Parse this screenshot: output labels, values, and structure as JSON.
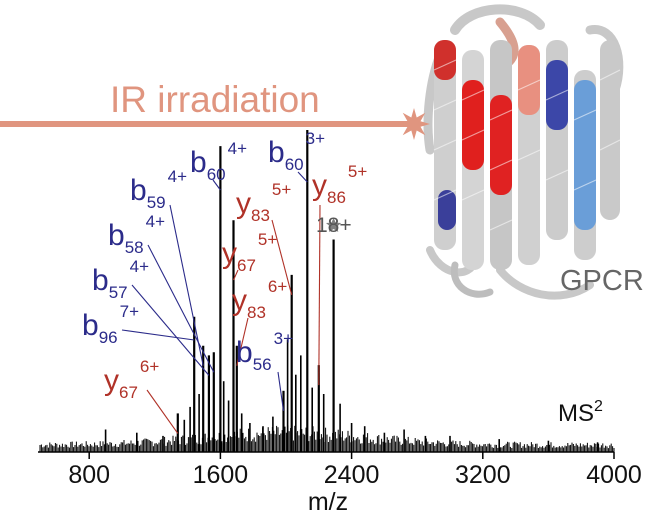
{
  "chart_data": {
    "type": "mass-spectrum",
    "xlabel": "m/z",
    "xlim": [
      500,
      4000
    ],
    "xticks": [
      800,
      1600,
      2400,
      3200,
      4000
    ],
    "spectrum_label_main": "MS",
    "spectrum_label_sup": "2",
    "annotations": {
      "irradiation": "IR irradiation",
      "protein": "GPCR",
      "precursor_charge": "18+"
    },
    "colors": {
      "b_ions": "#2b2b8a",
      "y_ions": "#b03228",
      "precursor": "#808080",
      "laser": "#e0957f",
      "spectrum": "#000000"
    },
    "peaks": [
      {
        "ion": "b",
        "num": "59",
        "charge": "4+",
        "mz": 1495,
        "rel": 0.33
      },
      {
        "ion": "b",
        "num": "57",
        "charge": "4+",
        "mz": 1530,
        "rel": 0.3
      },
      {
        "ion": "b",
        "num": "58",
        "charge": "4+",
        "mz": 1560,
        "rel": 0.31
      },
      {
        "ion": "b",
        "num": "96",
        "charge": "7+",
        "mz": 1440,
        "rel": 0.42
      },
      {
        "ion": "b",
        "num": "60",
        "charge": "4+",
        "mz": 1600,
        "rel": 0.95
      },
      {
        "ion": "y",
        "num": "67",
        "charge": "5+",
        "mz": 1680,
        "rel": 0.72
      },
      {
        "ion": "y",
        "num": "83",
        "charge": "6+",
        "mz": 1700,
        "rel": 0.33
      },
      {
        "ion": "y",
        "num": "67",
        "charge": "6+",
        "mz": 1340,
        "rel": 0.12
      },
      {
        "ion": "b",
        "num": "56",
        "charge": "3+",
        "mz": 1985,
        "rel": 0.19
      },
      {
        "ion": "y",
        "num": "83",
        "charge": "5+",
        "mz": 2035,
        "rel": 0.55
      },
      {
        "ion": "b",
        "num": "60",
        "charge": "3+",
        "mz": 2130,
        "rel": 1.0
      },
      {
        "ion": "y",
        "num": "86",
        "charge": "5+",
        "mz": 2200,
        "rel": 0.27
      },
      {
        "ion": "precursor",
        "num": "",
        "charge": "18+",
        "mz": 2290,
        "rel": 0.66
      }
    ],
    "minor_peaks": [
      {
        "mz": 900,
        "rel": 0.07
      },
      {
        "mz": 1090,
        "rel": 0.06
      },
      {
        "mz": 1250,
        "rel": 0.05
      },
      {
        "mz": 1380,
        "rel": 0.1
      },
      {
        "mz": 1415,
        "rel": 0.14
      },
      {
        "mz": 1470,
        "rel": 0.18
      },
      {
        "mz": 1620,
        "rel": 0.22
      },
      {
        "mz": 1650,
        "rel": 0.16
      },
      {
        "mz": 1730,
        "rel": 0.12
      },
      {
        "mz": 1780,
        "rel": 0.09
      },
      {
        "mz": 1860,
        "rel": 0.08
      },
      {
        "mz": 1920,
        "rel": 0.11
      },
      {
        "mz": 2010,
        "rel": 0.35
      },
      {
        "mz": 2060,
        "rel": 0.24
      },
      {
        "mz": 2090,
        "rel": 0.3
      },
      {
        "mz": 2160,
        "rel": 0.2
      },
      {
        "mz": 2230,
        "rel": 0.18
      },
      {
        "mz": 2330,
        "rel": 0.15
      },
      {
        "mz": 2400,
        "rel": 0.09
      },
      {
        "mz": 2480,
        "rel": 0.08
      },
      {
        "mz": 2600,
        "rel": 0.06
      },
      {
        "mz": 2720,
        "rel": 0.07
      },
      {
        "mz": 2850,
        "rel": 0.05
      },
      {
        "mz": 3000,
        "rel": 0.05
      },
      {
        "mz": 3300,
        "rel": 0.04
      },
      {
        "mz": 3600,
        "rel": 0.035
      },
      {
        "mz": 3900,
        "rel": 0.03
      }
    ]
  }
}
